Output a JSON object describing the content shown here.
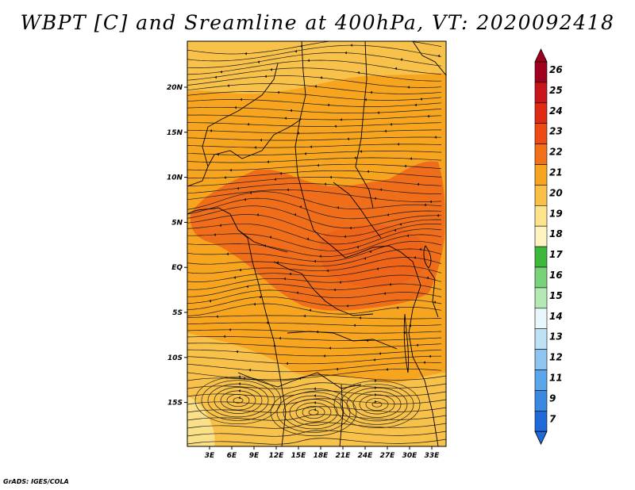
{
  "title": "WBPT [C] and Sreamline at 400hPa, VT: 2020092418",
  "footer": "GrADS: IGES/COLA",
  "map": {
    "lon_range": [
      0,
      35
    ],
    "lat_range": [
      -20,
      24
    ],
    "lat_ticks": [
      "20N",
      "15N",
      "10N",
      "5N",
      "EQ",
      "5S",
      "10S",
      "15S"
    ],
    "lon_ticks": [
      "3E",
      "6E",
      "9E",
      "12E",
      "15E",
      "18E",
      "21E",
      "24E",
      "27E",
      "30E",
      "33E"
    ],
    "colors": {
      "background": "#f7a51e",
      "light": "#f8c24a",
      "pale": "#fbe08a",
      "dark": "#f06e1a",
      "dark_core": "#ee6418",
      "streamline": "#1a1a1a",
      "border": "#000000"
    }
  },
  "colorbar": {
    "labels": [
      "26",
      "25",
      "24",
      "23",
      "22",
      "21",
      "20",
      "19",
      "18",
      "17",
      "16",
      "15",
      "14",
      "13",
      "12",
      "11",
      "9",
      "7"
    ],
    "colors": [
      "#a0001e",
      "#c8141a",
      "#e02a14",
      "#f04a14",
      "#f36f18",
      "#f7a51e",
      "#fac046",
      "#fde48c",
      "#fff3c0",
      "#3cb83c",
      "#78d278",
      "#b4e8b4",
      "#e8f7fb",
      "#bde2f6",
      "#8dc4f0",
      "#5aa6ea",
      "#3a88e2",
      "#1f6ad8"
    ],
    "top_arrow_color": "#a0001e",
    "bottom_arrow_color": "#1f6ad8"
  }
}
